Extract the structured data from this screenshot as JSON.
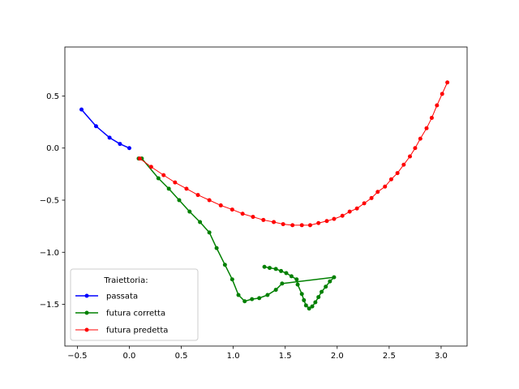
{
  "chart_data": {
    "type": "line",
    "title": "",
    "xlabel": "",
    "ylabel": "",
    "xlim": [
      -0.62,
      3.25
    ],
    "ylim": [
      -1.9,
      0.97
    ],
    "grid": false,
    "xticks": [
      -0.5,
      0.0,
      0.5,
      1.0,
      1.5,
      2.0,
      2.5,
      3.0
    ],
    "xtick_labels": [
      "−0.5",
      "0.0",
      "0.5",
      "1.0",
      "1.5",
      "2.0",
      "2.5",
      "3.0"
    ],
    "yticks": [
      0.5,
      0.0,
      -0.5,
      -1.0,
      -1.5
    ],
    "ytick_labels": [
      "0.5",
      "0.0",
      "−0.5",
      "−1.0",
      "−1.5"
    ],
    "legend": {
      "title": "Traiettoria:",
      "location": "lower-left"
    },
    "series": [
      {
        "name": "passata",
        "color": "#0000ff",
        "line_width": 1.5,
        "marker": "circle",
        "points": [
          [
            -0.46,
            0.37
          ],
          [
            -0.32,
            0.21
          ],
          [
            -0.19,
            0.1
          ],
          [
            -0.09,
            0.04
          ],
          [
            0.0,
            0.0
          ]
        ]
      },
      {
        "name": "futura corretta",
        "color": "#008000",
        "line_width": 1.5,
        "marker": "circle",
        "points": [
          [
            0.09,
            -0.1
          ],
          [
            0.12,
            -0.1
          ],
          [
            0.28,
            -0.29
          ],
          [
            0.38,
            -0.39
          ],
          [
            0.48,
            -0.5
          ],
          [
            0.58,
            -0.61
          ],
          [
            0.68,
            -0.71
          ],
          [
            0.77,
            -0.81
          ],
          [
            0.84,
            -0.96
          ],
          [
            0.92,
            -1.12
          ],
          [
            0.99,
            -1.26
          ],
          [
            1.05,
            -1.41
          ],
          [
            1.11,
            -1.47
          ],
          [
            1.18,
            -1.45
          ],
          [
            1.25,
            -1.44
          ],
          [
            1.33,
            -1.41
          ],
          [
            1.41,
            -1.36
          ],
          [
            1.47,
            -1.3
          ],
          [
            1.97,
            -1.24
          ],
          [
            1.93,
            -1.28
          ],
          [
            1.89,
            -1.33
          ],
          [
            1.85,
            -1.38
          ],
          [
            1.82,
            -1.43
          ],
          [
            1.79,
            -1.48
          ],
          [
            1.76,
            -1.52
          ],
          [
            1.73,
            -1.54
          ],
          [
            1.7,
            -1.51
          ],
          [
            1.68,
            -1.46
          ],
          [
            1.66,
            -1.4
          ],
          [
            1.62,
            -1.31
          ],
          [
            1.61,
            -1.26
          ],
          [
            1.56,
            -1.23
          ],
          [
            1.51,
            -1.2
          ],
          [
            1.46,
            -1.18
          ],
          [
            1.41,
            -1.16
          ],
          [
            1.35,
            -1.15
          ],
          [
            1.3,
            -1.14
          ]
        ]
      },
      {
        "name": "futura predetta",
        "color": "#ff0000",
        "line_width": 1,
        "marker": "circle",
        "points": [
          [
            0.1,
            -0.1
          ],
          [
            0.21,
            -0.18
          ],
          [
            0.33,
            -0.26
          ],
          [
            0.44,
            -0.33
          ],
          [
            0.55,
            -0.39
          ],
          [
            0.66,
            -0.45
          ],
          [
            0.77,
            -0.5
          ],
          [
            0.88,
            -0.55
          ],
          [
            0.99,
            -0.59
          ],
          [
            1.09,
            -0.63
          ],
          [
            1.19,
            -0.66
          ],
          [
            1.29,
            -0.69
          ],
          [
            1.39,
            -0.71
          ],
          [
            1.48,
            -0.73
          ],
          [
            1.57,
            -0.74
          ],
          [
            1.66,
            -0.74
          ],
          [
            1.74,
            -0.74
          ],
          [
            1.82,
            -0.72
          ],
          [
            1.9,
            -0.7
          ],
          [
            1.97,
            -0.68
          ],
          [
            2.05,
            -0.65
          ],
          [
            2.12,
            -0.61
          ],
          [
            2.19,
            -0.58
          ],
          [
            2.26,
            -0.53
          ],
          [
            2.33,
            -0.48
          ],
          [
            2.39,
            -0.42
          ],
          [
            2.46,
            -0.37
          ],
          [
            2.52,
            -0.3
          ],
          [
            2.58,
            -0.24
          ],
          [
            2.64,
            -0.16
          ],
          [
            2.7,
            -0.08
          ],
          [
            2.75,
            0.0
          ],
          [
            2.8,
            0.09
          ],
          [
            2.86,
            0.19
          ],
          [
            2.91,
            0.29
          ],
          [
            2.96,
            0.41
          ],
          [
            3.01,
            0.52
          ],
          [
            3.06,
            0.63
          ]
        ]
      }
    ]
  }
}
